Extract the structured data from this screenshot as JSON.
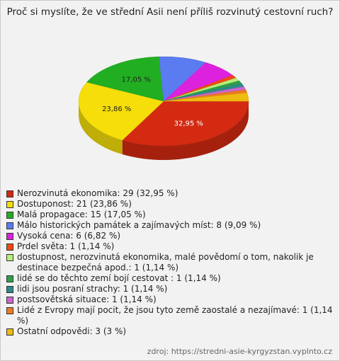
{
  "chart_data": {
    "type": "pie",
    "title": "Proč si myslíte, že ve střední Asii není příliš rozvinutý cestovní ruch?",
    "categories": [
      "Nerozvinutá ekonomika: 29 (32,95 %)",
      "Dostuponost: 21 (23,86 %)",
      "Malá propagace: 15 (17,05 %)",
      "Málo historických památek a zajímavých míst: 8 (9,09 %)",
      "Vysoká cena: 6 (6,82 %)",
      "Prdel světa: 1 (1,14 %)",
      "dostupnost, nerozvinutá ekonomika, malé povědomí o tom, nakolik je destinace bezpečná apod.: 1 (1,14 %)",
      "lidé se do těchto zemí bojí cestovat : 1 (1,14 %)",
      "lidi jsou posraní strachy: 1 (1,14 %)",
      "postsovětská situace: 1 (1,14 %)",
      "Lidé z Evropy mají pocit, že jsou tyto země zaostalé a nezajímavé: 1 (1,14 %)",
      "Ostatní odpovědi: 3 (3 %)"
    ],
    "values": [
      32.95,
      23.86,
      17.05,
      9.09,
      6.82,
      1.14,
      1.14,
      1.14,
      1.14,
      1.14,
      1.14,
      3
    ],
    "value_labels": [
      "32,95 %",
      "23,86 %",
      "17,05 %",
      null,
      null,
      null,
      null,
      null,
      null,
      null,
      null,
      null
    ],
    "colors": [
      "#d42a12",
      "#f5de0a",
      "#22ae22",
      "#5b7cf0",
      "#dd22dd",
      "#f04a10",
      "#b4f07a",
      "#2f9f4a",
      "#2f8a8a",
      "#cc66cc",
      "#ee7a22",
      "#eebb10"
    ],
    "source": "zdroj: https://stredni-asie-kyrgyzstan.vyplnto.cz"
  }
}
